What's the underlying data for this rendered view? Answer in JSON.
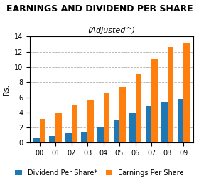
{
  "chart_data": {
    "type": "bar",
    "title": "EARNINGS AND DIVIDEND PER SHARE",
    "subtitle": "(Adjusted^)",
    "y_label": "Rs.",
    "categories": [
      "00",
      "01",
      "02",
      "03",
      "04",
      "05",
      "06",
      "07",
      "08",
      "09"
    ],
    "series": [
      {
        "name": "Dividend Per Share*",
        "values": [
          0.6,
          0.9,
          1.25,
          1.45,
          2.0,
          3.0,
          4.0,
          4.8,
          5.4,
          5.75
        ]
      },
      {
        "name": "Earnings Per Share",
        "values": [
          3.1,
          4.0,
          4.9,
          5.6,
          6.5,
          7.4,
          9.1,
          11.0,
          12.6,
          13.2
        ]
      }
    ],
    "ylim": [
      0,
      14
    ],
    "yticks": [
      0,
      2,
      4,
      6,
      8,
      10,
      12,
      14
    ],
    "grid": true,
    "legend": "lower center"
  }
}
